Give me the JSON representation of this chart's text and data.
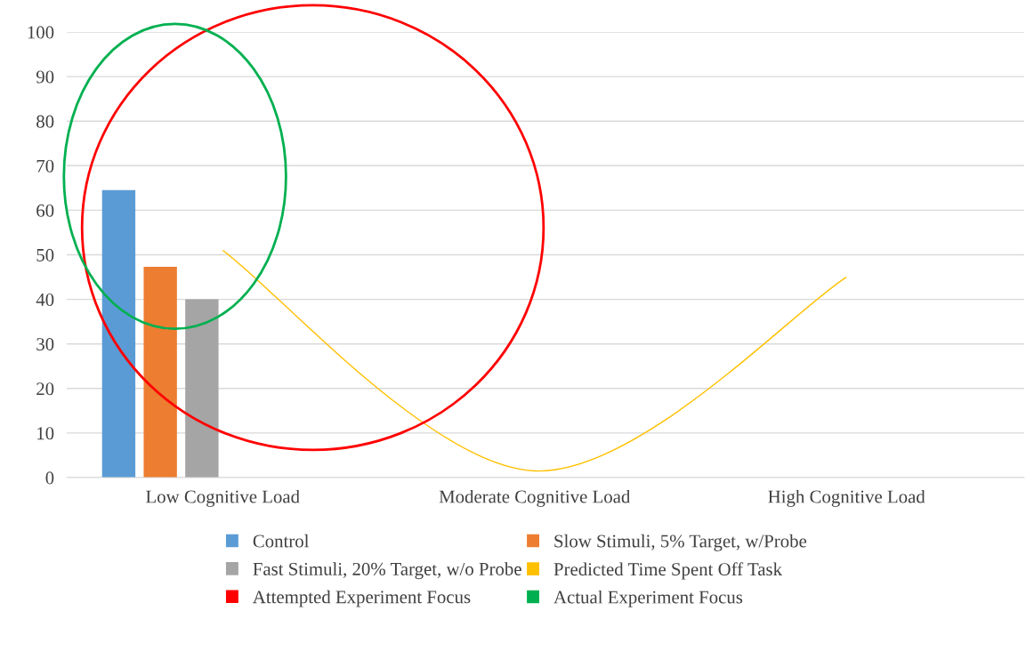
{
  "chart_data": {
    "type": "bar",
    "categories": [
      "Low Cognitive Load",
      "Moderate Cognitive Load",
      "High Cognitive Load"
    ],
    "ylim": [
      0,
      100
    ],
    "yticks": [
      0,
      10,
      20,
      30,
      40,
      50,
      60,
      70,
      80,
      90,
      100
    ],
    "grid": "y",
    "legend": "bottom",
    "series": [
      {
        "name": "Control",
        "color": "#5b9bd5",
        "values": [
          64.5,
          null,
          null
        ]
      },
      {
        "name": "Slow Stimuli, 5% Target, w/Probe",
        "color": "#ed7d31",
        "values": [
          47.3,
          null,
          null
        ]
      },
      {
        "name": "Fast Stimuli, 20% Target, w/o Probe",
        "color": "#a5a5a5",
        "values": [
          40,
          null,
          null
        ]
      },
      {
        "name": "Predicted Time Spent Off Task",
        "color": "#ffc000",
        "type": "line",
        "values": [
          51,
          1.5,
          45
        ]
      },
      {
        "name": "Attempted Experiment Focus",
        "color": "#ff0000",
        "type": "other",
        "values": [
          null,
          null,
          null
        ]
      },
      {
        "name": "Actual Experiment Focus",
        "color": "#00b050",
        "type": "other",
        "values": [
          null,
          null,
          null
        ]
      }
    ]
  }
}
